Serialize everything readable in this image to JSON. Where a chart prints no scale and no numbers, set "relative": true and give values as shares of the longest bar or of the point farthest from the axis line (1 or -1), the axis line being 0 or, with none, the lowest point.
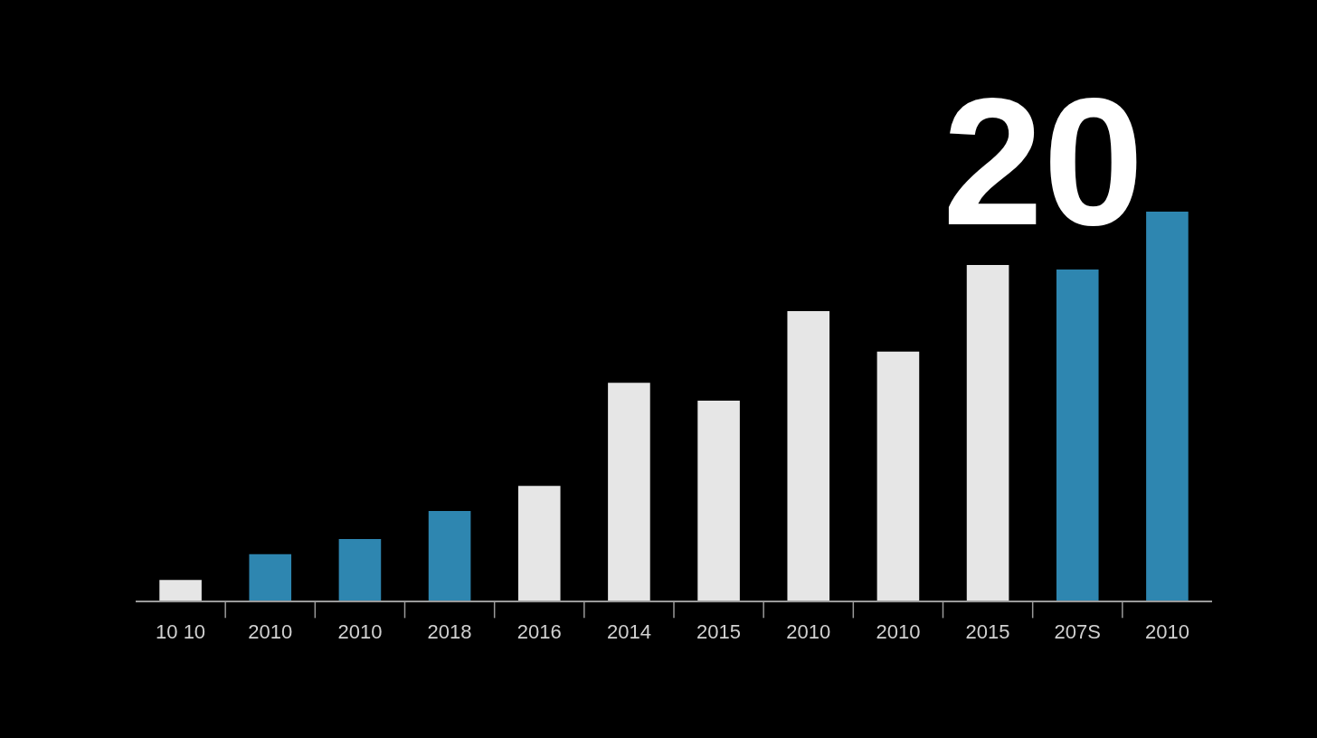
{
  "chart_data": {
    "type": "bar",
    "title": "20",
    "relative": true,
    "categories": [
      "10 10",
      "2010",
      "2010",
      "2018",
      "2016",
      "2014",
      "2015",
      "2010",
      "2010",
      "2015",
      "207S",
      "2010"
    ],
    "values": [
      0.053,
      0.119,
      0.158,
      0.23,
      0.295,
      0.56,
      0.514,
      0.744,
      0.64,
      0.863,
      0.851,
      1
    ],
    "colors": [
      "#e6e6e6",
      "#2e86b0",
      "#2e86b0",
      "#2e86b0",
      "#e6e6e6",
      "#e6e6e6",
      "#e6e6e6",
      "#e6e6e6",
      "#e6e6e6",
      "#e6e6e6",
      "#2e86b0",
      "#2e86b0"
    ],
    "grid": false
  }
}
